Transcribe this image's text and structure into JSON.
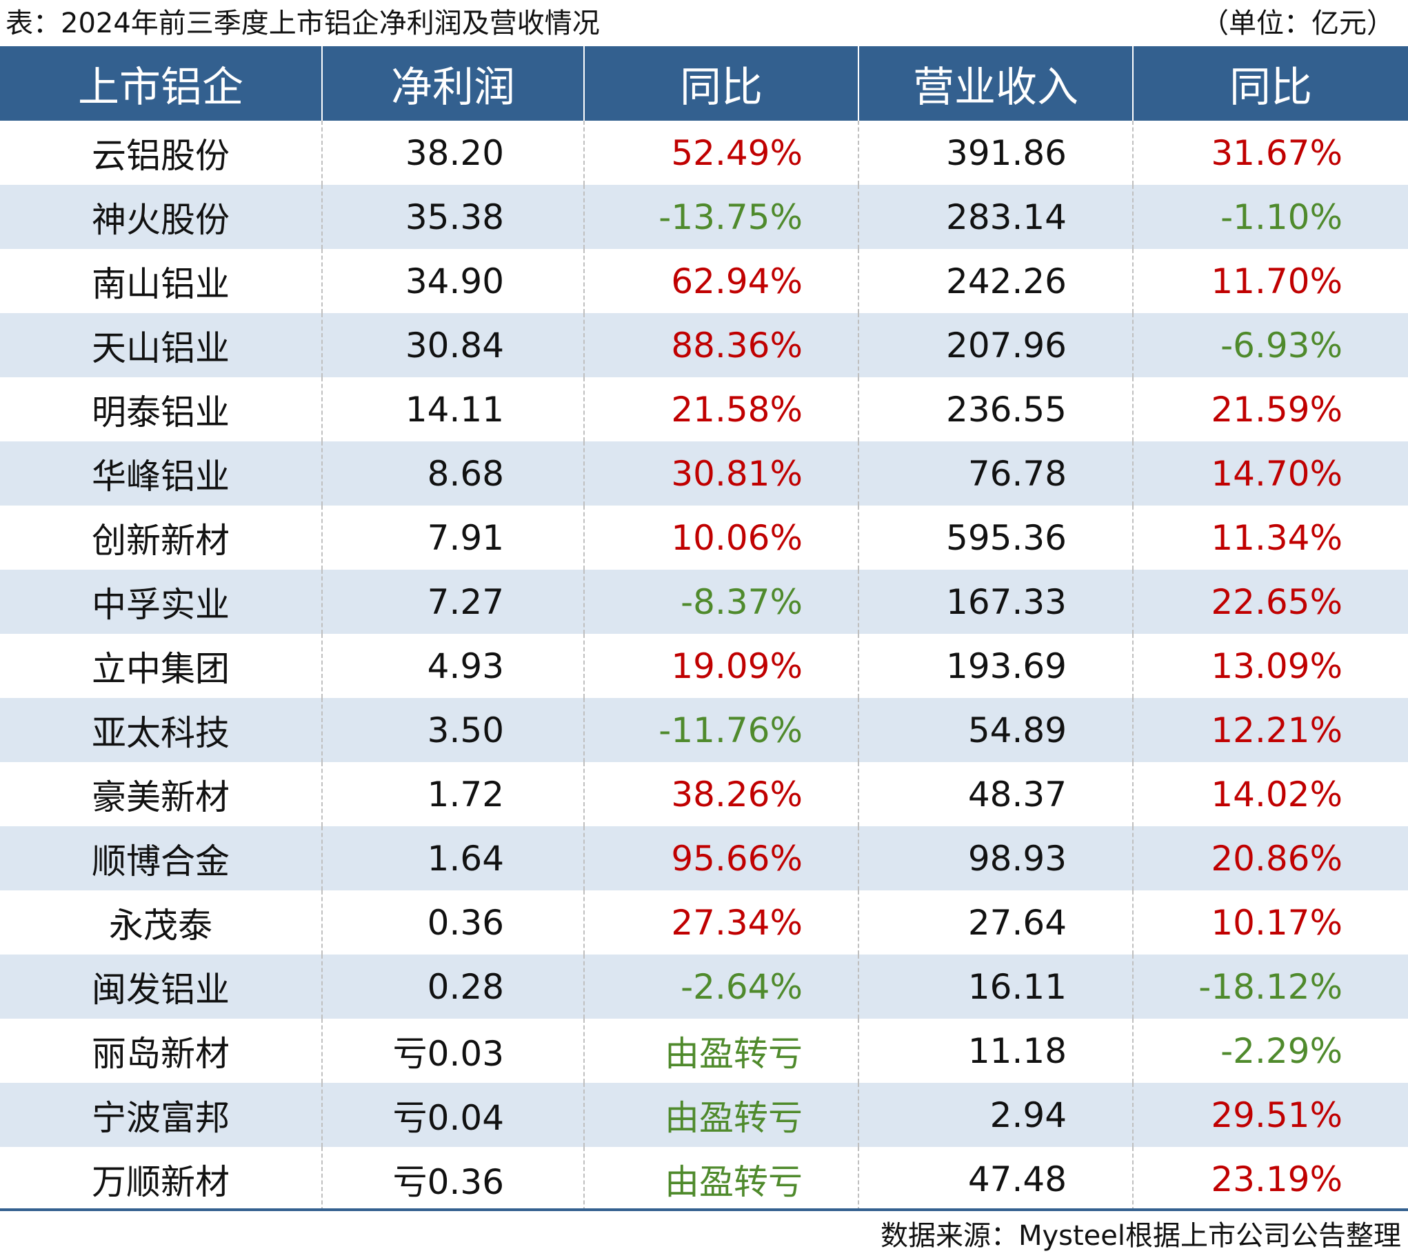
{
  "caption": "表：2024年前三季度上市铝企净利润及营收情况",
  "unit": "（单位：亿元）",
  "source": "数据来源：Mysteel根据上市公司公告整理",
  "colors": {
    "header_bg": "#33608f",
    "stripe_bg": "#dce6f1",
    "positive": "#c00000",
    "negative": "#4f8a2c"
  },
  "headers": [
    "上市铝企",
    "净利润",
    "同比",
    "营业收入",
    "同比"
  ],
  "rows": [
    {
      "name": "云铝股份",
      "profit": "38.20",
      "profit_yoy": "52.49%",
      "profit_yoy_sign": "pos",
      "revenue": "391.86",
      "revenue_yoy": "31.67%",
      "revenue_yoy_sign": "pos"
    },
    {
      "name": "神火股份",
      "profit": "35.38",
      "profit_yoy": "-13.75%",
      "profit_yoy_sign": "neg",
      "revenue": "283.14",
      "revenue_yoy": "-1.10%",
      "revenue_yoy_sign": "neg"
    },
    {
      "name": "南山铝业",
      "profit": "34.90",
      "profit_yoy": "62.94%",
      "profit_yoy_sign": "pos",
      "revenue": "242.26",
      "revenue_yoy": "11.70%",
      "revenue_yoy_sign": "pos"
    },
    {
      "name": "天山铝业",
      "profit": "30.84",
      "profit_yoy": "88.36%",
      "profit_yoy_sign": "pos",
      "revenue": "207.96",
      "revenue_yoy": "-6.93%",
      "revenue_yoy_sign": "neg"
    },
    {
      "name": "明泰铝业",
      "profit": "14.11",
      "profit_yoy": "21.58%",
      "profit_yoy_sign": "pos",
      "revenue": "236.55",
      "revenue_yoy": "21.59%",
      "revenue_yoy_sign": "pos"
    },
    {
      "name": "华峰铝业",
      "profit": "8.68",
      "profit_yoy": "30.81%",
      "profit_yoy_sign": "pos",
      "revenue": "76.78",
      "revenue_yoy": "14.70%",
      "revenue_yoy_sign": "pos"
    },
    {
      "name": "创新新材",
      "profit": "7.91",
      "profit_yoy": "10.06%",
      "profit_yoy_sign": "pos",
      "revenue": "595.36",
      "revenue_yoy": "11.34%",
      "revenue_yoy_sign": "pos"
    },
    {
      "name": "中孚实业",
      "profit": "7.27",
      "profit_yoy": "-8.37%",
      "profit_yoy_sign": "neg",
      "revenue": "167.33",
      "revenue_yoy": "22.65%",
      "revenue_yoy_sign": "pos"
    },
    {
      "name": "立中集团",
      "profit": "4.93",
      "profit_yoy": "19.09%",
      "profit_yoy_sign": "pos",
      "revenue": "193.69",
      "revenue_yoy": "13.09%",
      "revenue_yoy_sign": "pos"
    },
    {
      "name": "亚太科技",
      "profit": "3.50",
      "profit_yoy": "-11.76%",
      "profit_yoy_sign": "neg",
      "revenue": "54.89",
      "revenue_yoy": "12.21%",
      "revenue_yoy_sign": "pos"
    },
    {
      "name": "豪美新材",
      "profit": "1.72",
      "profit_yoy": "38.26%",
      "profit_yoy_sign": "pos",
      "revenue": "48.37",
      "revenue_yoy": "14.02%",
      "revenue_yoy_sign": "pos"
    },
    {
      "name": "顺博合金",
      "profit": "1.64",
      "profit_yoy": "95.66%",
      "profit_yoy_sign": "pos",
      "revenue": "98.93",
      "revenue_yoy": "20.86%",
      "revenue_yoy_sign": "pos"
    },
    {
      "name": "永茂泰",
      "profit": "0.36",
      "profit_yoy": "27.34%",
      "profit_yoy_sign": "pos",
      "revenue": "27.64",
      "revenue_yoy": "10.17%",
      "revenue_yoy_sign": "pos"
    },
    {
      "name": "闽发铝业",
      "profit": "0.28",
      "profit_yoy": "-2.64%",
      "profit_yoy_sign": "neg",
      "revenue": "16.11",
      "revenue_yoy": "-18.12%",
      "revenue_yoy_sign": "neg"
    },
    {
      "name": "丽岛新材",
      "profit": "亏0.03",
      "profit_yoy": "由盈转亏",
      "profit_yoy_sign": "neg",
      "revenue": "11.18",
      "revenue_yoy": "-2.29%",
      "revenue_yoy_sign": "neg"
    },
    {
      "name": "宁波富邦",
      "profit": "亏0.04",
      "profit_yoy": "由盈转亏",
      "profit_yoy_sign": "neg",
      "revenue": "2.94",
      "revenue_yoy": "29.51%",
      "revenue_yoy_sign": "pos"
    },
    {
      "name": "万顺新材",
      "profit": "亏0.36",
      "profit_yoy": "由盈转亏",
      "profit_yoy_sign": "neg",
      "revenue": "47.48",
      "revenue_yoy": "23.19%",
      "revenue_yoy_sign": "pos"
    }
  ]
}
